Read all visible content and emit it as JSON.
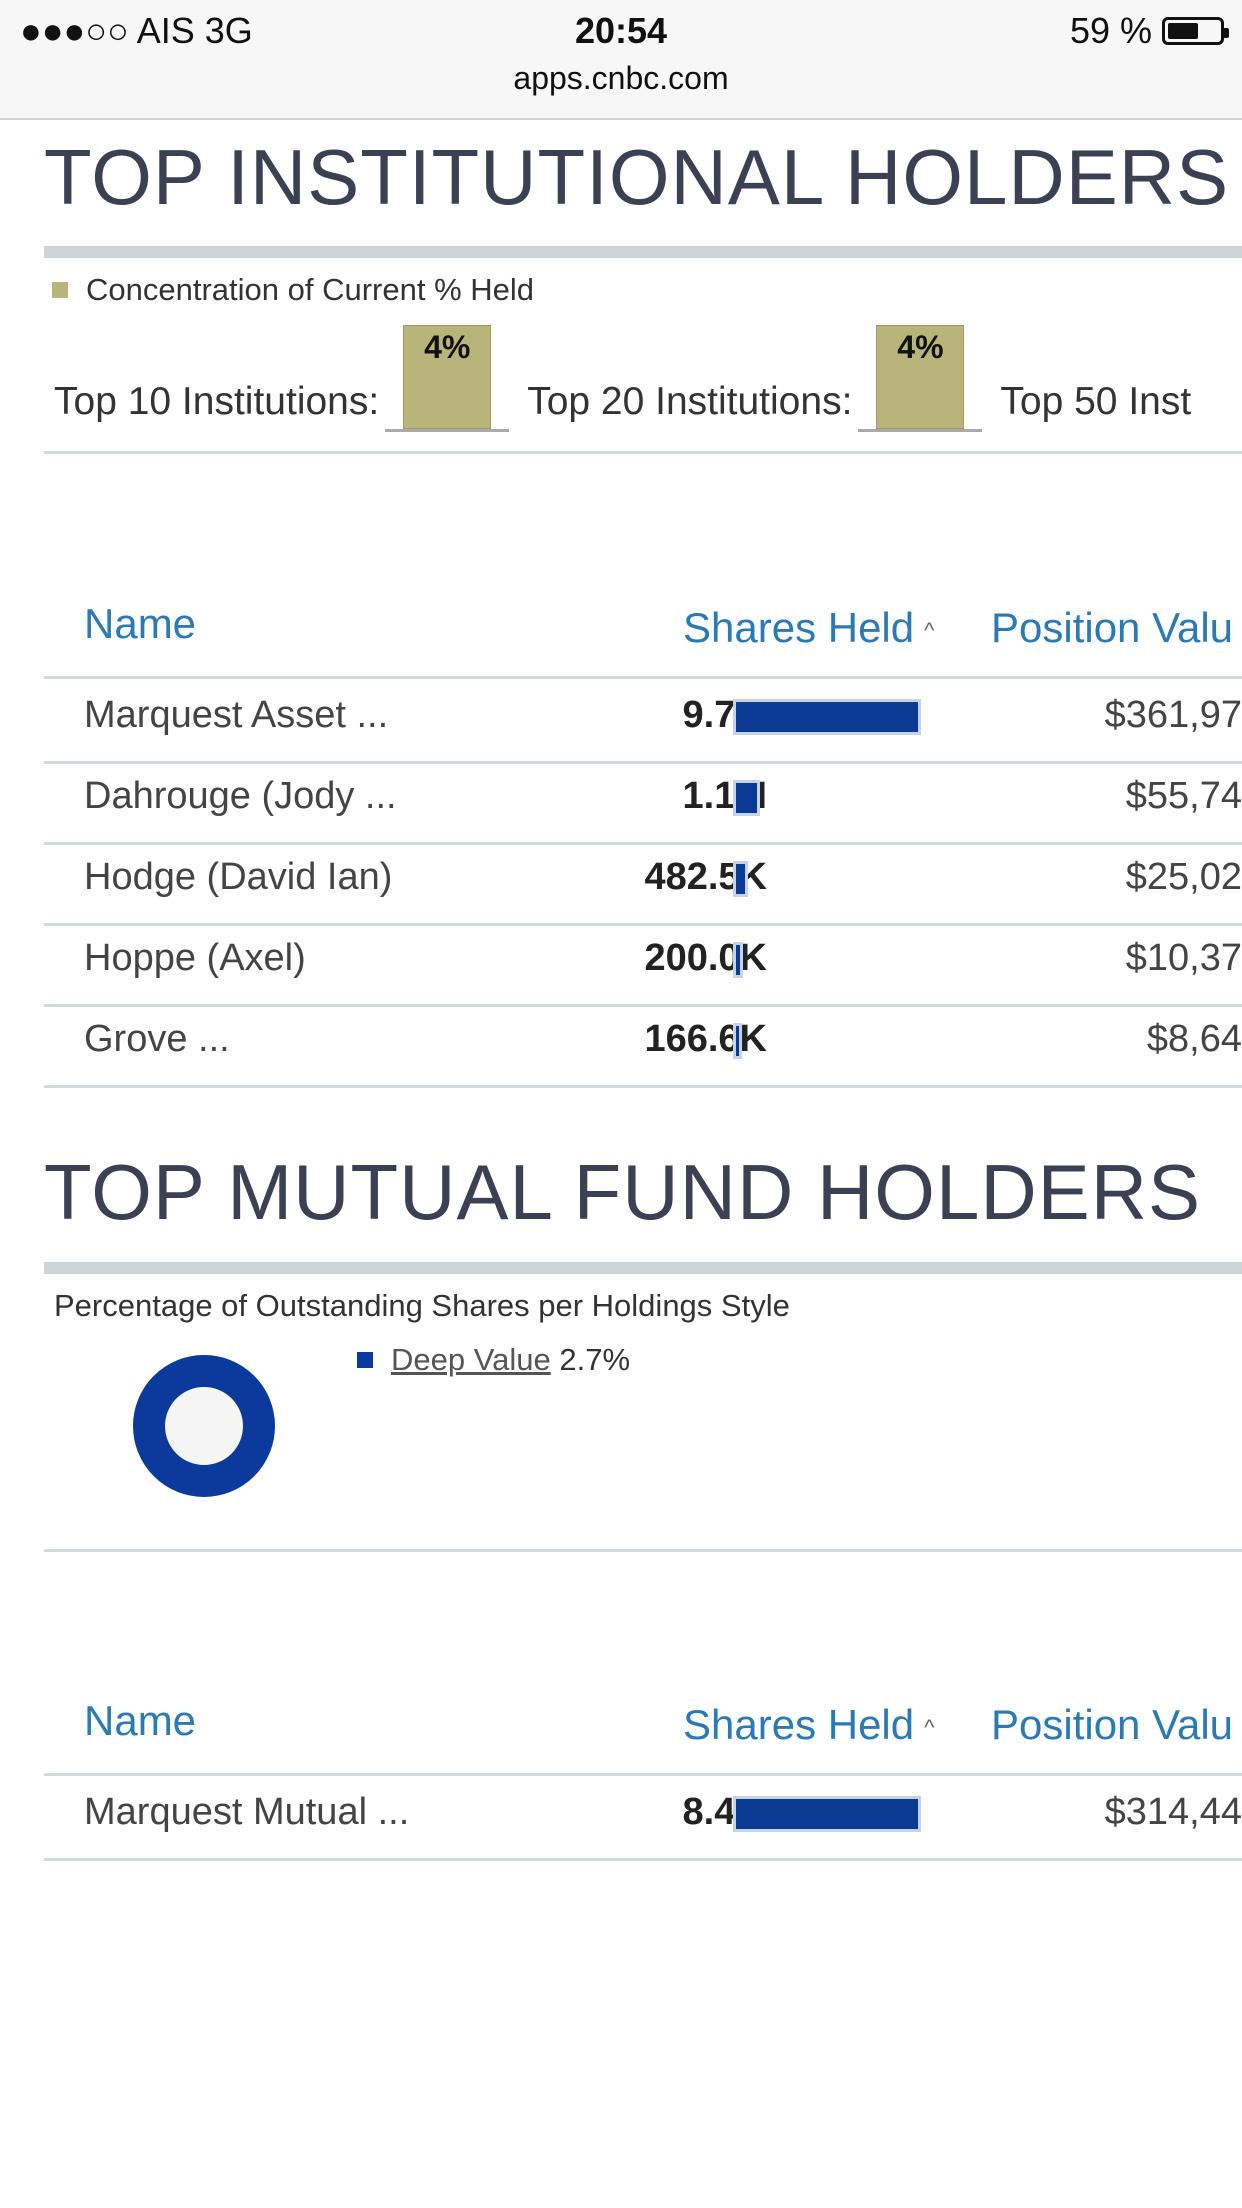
{
  "status_bar": {
    "carrier": "●●●○○ AIS   3G",
    "time": "20:54",
    "battery_pct": "59 %",
    "battery_level": 0.59
  },
  "url": "apps.cnbc.com",
  "institutional": {
    "title": "TOP INSTITUTIONAL HOLDERS",
    "legend": "Concentration of Current % Held",
    "legend_color": "#b9b47a",
    "concentration": [
      {
        "label": "Top 10 Institutions:",
        "pct": "4%"
      },
      {
        "label": "Top 20 Institutions:",
        "pct": "4%"
      },
      {
        "label": "Top 50 Inst"
      }
    ],
    "columns": {
      "name": "Name",
      "shares": "Shares Held",
      "position": "Position Valu"
    },
    "sort_indicator": "^",
    "rows": [
      {
        "name": "Marquest Asset ...",
        "shares": "9.7M",
        "share_ratio": 1.0,
        "value": "$361,97"
      },
      {
        "name": "Dahrouge (Jody ...",
        "shares": "1.1M",
        "share_ratio": 0.113,
        "value": "$55,74"
      },
      {
        "name": "Hodge (David Ian)",
        "shares": "482.5K",
        "share_ratio": 0.05,
        "value": "$25,02"
      },
      {
        "name": "Hoppe (Axel)",
        "shares": "200.0K",
        "share_ratio": 0.021,
        "value": "$10,37"
      },
      {
        "name": "Grove ...",
        "shares": "166.6K",
        "share_ratio": 0.017,
        "value": "$8,64"
      }
    ]
  },
  "mutual_fund": {
    "title": "TOP MUTUAL FUND HOLDERS",
    "subtitle": "Percentage of Outstanding Shares per Holdings Style",
    "style": {
      "name": "Deep Value",
      "pct": "2.7%",
      "color": "#0a3a9b"
    },
    "columns": {
      "name": "Name",
      "shares": "Shares Held",
      "position": "Position Valu"
    },
    "sort_indicator": "^",
    "rows": [
      {
        "name": "Marquest Mutual ...",
        "shares": "8.4M",
        "share_ratio": 1.0,
        "value": "$314,44"
      }
    ]
  }
}
